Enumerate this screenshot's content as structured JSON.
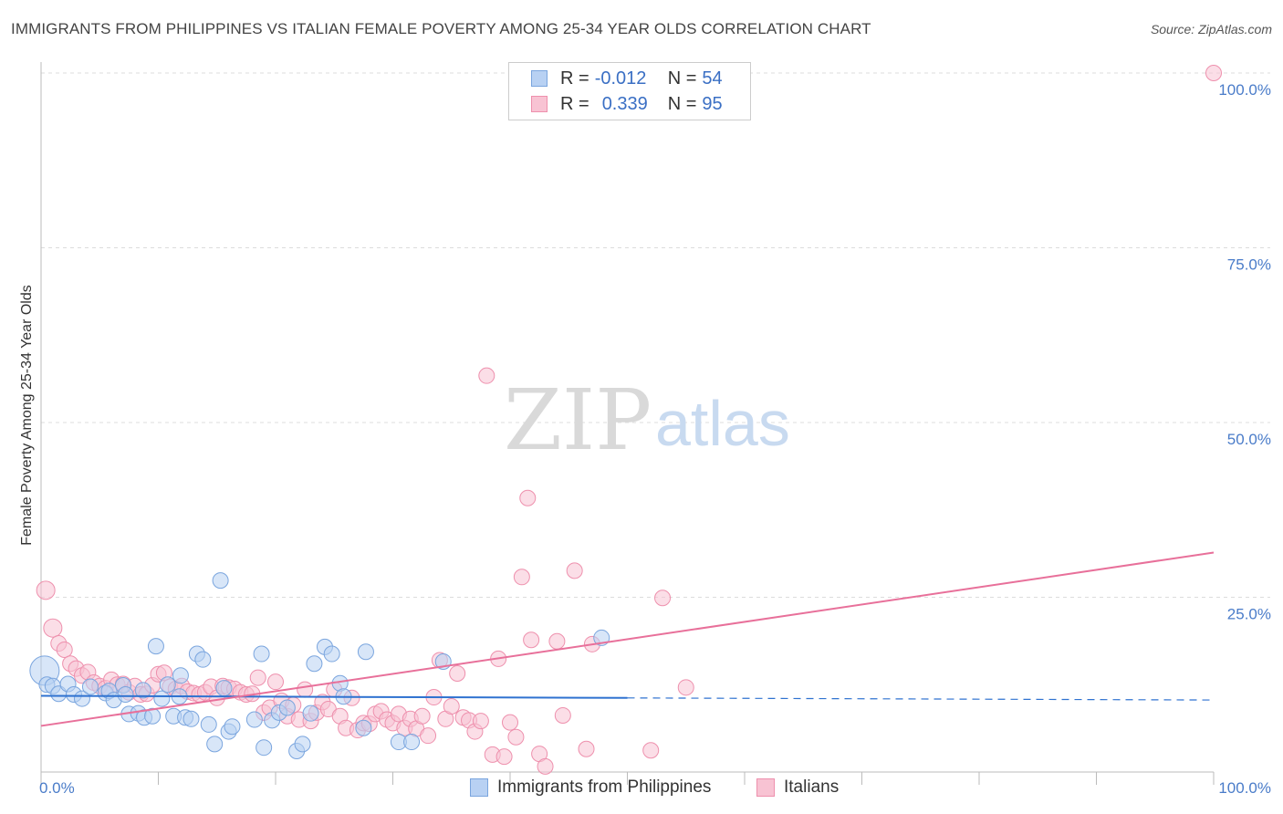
{
  "title": "IMMIGRANTS FROM PHILIPPINES VS ITALIAN FEMALE POVERTY AMONG 25-34 YEAR OLDS CORRELATION CHART",
  "source": "Source: ZipAtlas.com",
  "watermark": {
    "zip": "ZIP",
    "atlas": "atlas"
  },
  "legend": {
    "rows": [
      {
        "r_label": "R = ",
        "r_value": "-0.012",
        "n_label": "N = ",
        "n_value": "54"
      },
      {
        "r_label": "R = ",
        "r_value": "0.339",
        "n_label": "N = ",
        "n_value": "95"
      }
    ]
  },
  "bottom_legend": {
    "series1": "Immigrants from Philippines",
    "series2": "Italians"
  },
  "colors": {
    "blue_fill": "#b8d1f3",
    "blue_stroke": "#7aa5de",
    "blue_line": "#2f72d0",
    "pink_fill": "#f8c3d3",
    "pink_stroke": "#ee90ad",
    "pink_line": "#e8709a",
    "tick": "#4a7cc9"
  },
  "chart_data": {
    "type": "scatter",
    "title": "IMMIGRANTS FROM PHILIPPINES VS ITALIAN FEMALE POVERTY AMONG 25-34 YEAR OLDS CORRELATION CHART",
    "xlabel": "",
    "ylabel": "Female Poverty Among 25-34 Year Olds",
    "xlim": [
      0,
      100
    ],
    "ylim": [
      0,
      100
    ],
    "x_tick_labels": [
      {
        "value": 0,
        "label": "0.0%"
      },
      {
        "value": 100,
        "label": "100.0%"
      }
    ],
    "y_tick_labels": [
      {
        "value": 25,
        "label": "25.0%"
      },
      {
        "value": 50,
        "label": "50.0%"
      },
      {
        "value": 75,
        "label": "75.0%"
      },
      {
        "value": 100,
        "label": "100.0%"
      }
    ],
    "grid": true,
    "series": [
      {
        "name": "Immigrants from Philippines",
        "color": "blue",
        "trend": {
          "x0": 0,
          "y0": 10.9,
          "x1": 50,
          "y1": 10.6,
          "dashed_to": 100,
          "y_end": 10.3
        },
        "points": [
          [
            0.3,
            14.5
          ],
          [
            0.5,
            12.5
          ],
          [
            1,
            12.3
          ],
          [
            1.5,
            11.2
          ],
          [
            2.3,
            12.6
          ],
          [
            2.8,
            11.1
          ],
          [
            3.5,
            10.5
          ],
          [
            4.2,
            12.2
          ],
          [
            5.5,
            11.3
          ],
          [
            5.8,
            11.6
          ],
          [
            6.2,
            10.3
          ],
          [
            7,
            12.4
          ],
          [
            7.2,
            11.1
          ],
          [
            7.5,
            8.3
          ],
          [
            8.3,
            8.4
          ],
          [
            8.7,
            11.7
          ],
          [
            8.8,
            7.8
          ],
          [
            9.5,
            8
          ],
          [
            9.8,
            18
          ],
          [
            10.3,
            10.5
          ],
          [
            10.8,
            12.5
          ],
          [
            11.3,
            8
          ],
          [
            11.8,
            10.8
          ],
          [
            11.9,
            13.8
          ],
          [
            12.3,
            7.8
          ],
          [
            12.8,
            7.6
          ],
          [
            13.3,
            16.9
          ],
          [
            13.8,
            16.1
          ],
          [
            14.3,
            6.8
          ],
          [
            14.8,
            4
          ],
          [
            15.3,
            27.4
          ],
          [
            15.6,
            12
          ],
          [
            16,
            5.8
          ],
          [
            16.3,
            6.5
          ],
          [
            18.2,
            7.5
          ],
          [
            18.8,
            16.9
          ],
          [
            19,
            3.5
          ],
          [
            19.7,
            7.4
          ],
          [
            20.3,
            8.5
          ],
          [
            21,
            9.2
          ],
          [
            21.8,
            3
          ],
          [
            22.3,
            4
          ],
          [
            23,
            8.4
          ],
          [
            23.3,
            15.5
          ],
          [
            24.2,
            17.9
          ],
          [
            24.8,
            16.9
          ],
          [
            25.5,
            12.7
          ],
          [
            25.8,
            10.8
          ],
          [
            27.5,
            6.3
          ],
          [
            27.7,
            17.2
          ],
          [
            30.5,
            4.3
          ],
          [
            31.6,
            4.3
          ],
          [
            34.3,
            15.8
          ],
          [
            47.8,
            19.2
          ]
        ]
      },
      {
        "name": "Italians",
        "color": "pink",
        "trend": {
          "x0": 0,
          "y0": 6.6,
          "x1": 100,
          "y1": 31.4
        },
        "points": [
          [
            0.4,
            26
          ],
          [
            1,
            20.6
          ],
          [
            1.5,
            18.4
          ],
          [
            2,
            17.5
          ],
          [
            2.5,
            15.5
          ],
          [
            3,
            14.8
          ],
          [
            3.5,
            13.8
          ],
          [
            4,
            14.3
          ],
          [
            4.5,
            12.8
          ],
          [
            5,
            12.3
          ],
          [
            5.5,
            12
          ],
          [
            6,
            13.2
          ],
          [
            6.5,
            12.5
          ],
          [
            7,
            12.6
          ],
          [
            7.5,
            11.4
          ],
          [
            8,
            12.3
          ],
          [
            8.5,
            11.1
          ],
          [
            9,
            11.2
          ],
          [
            9.5,
            12.4
          ],
          [
            10,
            14
          ],
          [
            10.5,
            14.2
          ],
          [
            11,
            12.2
          ],
          [
            11.5,
            11.9
          ],
          [
            12,
            12.3
          ],
          [
            12.5,
            11.5
          ],
          [
            13,
            11.3
          ],
          [
            13.5,
            11.1
          ],
          [
            14,
            11.4
          ],
          [
            14.5,
            12.2
          ],
          [
            15,
            10.6
          ],
          [
            15.5,
            12.3
          ],
          [
            16,
            12.1
          ],
          [
            16.5,
            11.9
          ],
          [
            17,
            11.4
          ],
          [
            17.5,
            11.1
          ],
          [
            18,
            11.2
          ],
          [
            18.5,
            13.5
          ],
          [
            19,
            8.5
          ],
          [
            19.5,
            9.2
          ],
          [
            20,
            12.9
          ],
          [
            20.5,
            10.2
          ],
          [
            21,
            8
          ],
          [
            21.5,
            9.6
          ],
          [
            22,
            7.5
          ],
          [
            22.5,
            11.8
          ],
          [
            23,
            7.3
          ],
          [
            23.5,
            8.5
          ],
          [
            24,
            10
          ],
          [
            24.5,
            9
          ],
          [
            25,
            11.8
          ],
          [
            25.5,
            8
          ],
          [
            26,
            6.3
          ],
          [
            26.5,
            10.6
          ],
          [
            27,
            6
          ],
          [
            27.5,
            7
          ],
          [
            28,
            6.9
          ],
          [
            28.5,
            8.3
          ],
          [
            29,
            8.7
          ],
          [
            29.5,
            7.5
          ],
          [
            30,
            7
          ],
          [
            30.5,
            8.3
          ],
          [
            31,
            6.3
          ],
          [
            31.5,
            7.6
          ],
          [
            32,
            6.2
          ],
          [
            32.5,
            8
          ],
          [
            33,
            5.2
          ],
          [
            33.5,
            10.7
          ],
          [
            34,
            16
          ],
          [
            34.5,
            7.6
          ],
          [
            35,
            9.4
          ],
          [
            35.5,
            14.1
          ],
          [
            36,
            7.8
          ],
          [
            36.5,
            7.4
          ],
          [
            37,
            5.8
          ],
          [
            37.5,
            7.3
          ],
          [
            38,
            56.7
          ],
          [
            38.5,
            2.5
          ],
          [
            39,
            16.2
          ],
          [
            39.5,
            2.2
          ],
          [
            40,
            7.1
          ],
          [
            40.5,
            5
          ],
          [
            41,
            27.9
          ],
          [
            41.5,
            39.2
          ],
          [
            41.8,
            18.9
          ],
          [
            42.5,
            2.6
          ],
          [
            43,
            0.8
          ],
          [
            44,
            18.7
          ],
          [
            44.5,
            8.1
          ],
          [
            45.5,
            28.8
          ],
          [
            46.5,
            3.3
          ],
          [
            47,
            18.3
          ],
          [
            52,
            3.1
          ],
          [
            53,
            24.9
          ],
          [
            55,
            12.1
          ],
          [
            100,
            100
          ]
        ]
      }
    ]
  }
}
